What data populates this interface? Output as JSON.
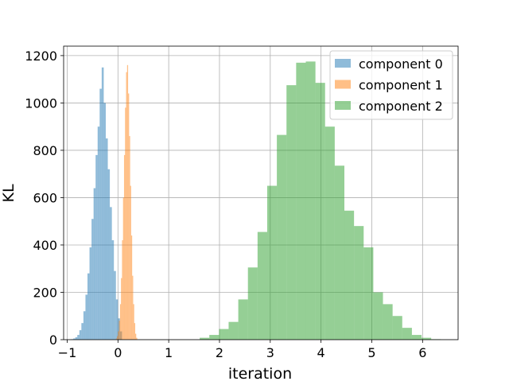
{
  "chart_data": {
    "type": "bar",
    "title": "",
    "xlabel": "iteration",
    "ylabel": "KL",
    "xlim": [
      -1.07,
      6.7
    ],
    "ylim": [
      0,
      1240
    ],
    "xticks": [
      -1,
      0,
      1,
      2,
      3,
      4,
      5,
      6
    ],
    "xtick_labels": [
      "−1",
      "0",
      "1",
      "2",
      "3",
      "4",
      "5",
      "6"
    ],
    "yticks": [
      0,
      200,
      400,
      600,
      800,
      1000,
      1200
    ],
    "ytick_labels": [
      "0",
      "200",
      "400",
      "600",
      "800",
      "1000",
      "1200"
    ],
    "grid": true,
    "legend_position": "top-right",
    "series": [
      {
        "name": "component 0",
        "color": "#1f77b4",
        "alpha": 0.5,
        "bin_edges": [
          -0.92,
          -0.88,
          -0.84,
          -0.8,
          -0.76,
          -0.72,
          -0.68,
          -0.64,
          -0.6,
          -0.56,
          -0.52,
          -0.48,
          -0.44,
          -0.4,
          -0.36,
          -0.32,
          -0.28,
          -0.24,
          -0.2,
          -0.16,
          -0.12,
          -0.08,
          -0.04,
          0.0,
          0.04,
          0.08
        ],
        "values": [
          2,
          5,
          10,
          20,
          40,
          70,
          120,
          190,
          280,
          390,
          510,
          640,
          780,
          900,
          1060,
          1150,
          1000,
          850,
          720,
          560,
          420,
          290,
          170,
          90,
          35
        ]
      },
      {
        "name": "component 1",
        "color": "#ff7f0e",
        "alpha": 0.5,
        "bin_edges": [
          -0.04,
          -0.02,
          0.0,
          0.02,
          0.04,
          0.06,
          0.08,
          0.1,
          0.12,
          0.14,
          0.16,
          0.18,
          0.2,
          0.22,
          0.24,
          0.26,
          0.28,
          0.3,
          0.32,
          0.34,
          0.36,
          0.38
        ],
        "values": [
          5,
          15,
          35,
          80,
          150,
          260,
          420,
          600,
          780,
          980,
          1130,
          1160,
          1040,
          860,
          650,
          440,
          270,
          150,
          70,
          25,
          8
        ]
      },
      {
        "name": "component 2",
        "color": "#2ca02c",
        "alpha": 0.5,
        "bin_edges": [
          1.61,
          1.8,
          1.99,
          2.18,
          2.37,
          2.56,
          2.75,
          2.94,
          3.13,
          3.32,
          3.51,
          3.7,
          3.89,
          4.08,
          4.27,
          4.46,
          4.65,
          4.84,
          5.03,
          5.22,
          5.41,
          5.6,
          5.79,
          5.98,
          6.17,
          6.36
        ],
        "values": [
          8,
          20,
          45,
          75,
          170,
          305,
          455,
          650,
          865,
          1075,
          1170,
          1175,
          1085,
          900,
          735,
          545,
          480,
          390,
          200,
          150,
          100,
          50,
          20,
          8,
          2
        ]
      }
    ]
  }
}
